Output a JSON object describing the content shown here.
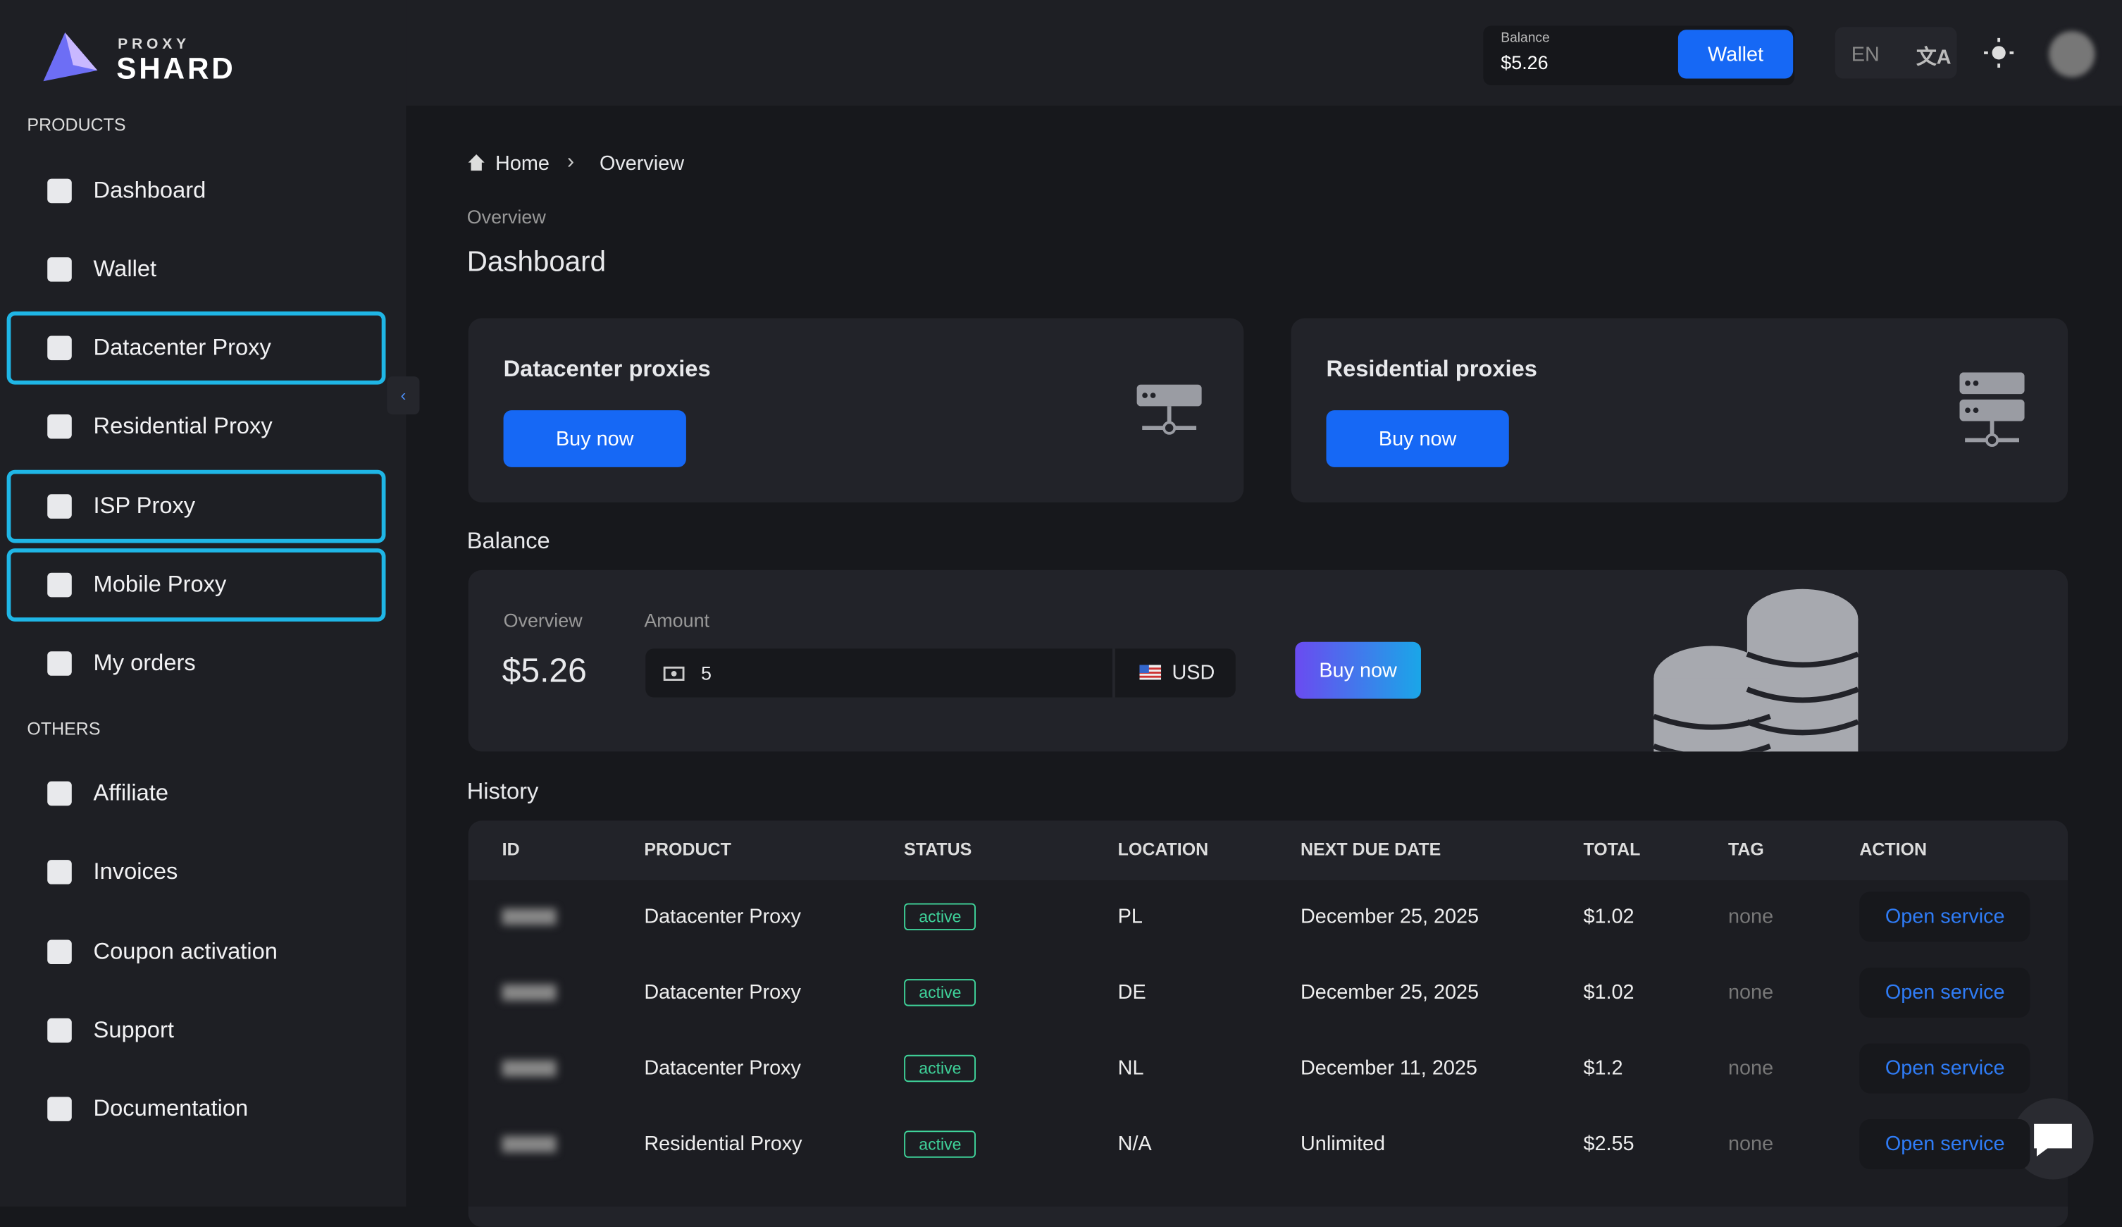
{
  "header": {
    "logo_top": "PROXY",
    "logo_bottom": "SHARD",
    "balance_label": "Balance",
    "balance_value": "$5.26",
    "wallet_button": "Wallet",
    "language": "EN"
  },
  "sidebar": {
    "sections": [
      {
        "title": "PRODUCTS",
        "items": [
          "Dashboard",
          "Wallet",
          "Datacenter Proxy",
          "Residential Proxy",
          "ISP Proxy",
          "Mobile Proxy",
          "My orders"
        ]
      },
      {
        "title": "OTHERS",
        "items": [
          "Affiliate",
          "Invoices",
          "Coupon activation",
          "Support",
          "Documentation"
        ]
      }
    ]
  },
  "breadcrumb": [
    "Home",
    "Overview"
  ],
  "page": {
    "subtitle": "Overview",
    "title": "Dashboard"
  },
  "cards": [
    {
      "title": "Datacenter proxies",
      "button": "Buy now"
    },
    {
      "title": "Residential proxies",
      "button": "Buy now"
    }
  ],
  "balance": {
    "heading": "Balance",
    "overview_label": "Overview",
    "overview_value": "$5.26",
    "amount_label": "Amount",
    "amount_value": "5",
    "currency": "USD",
    "button": "Buy now"
  },
  "history": {
    "heading": "History",
    "columns": [
      "ID",
      "PRODUCT",
      "STATUS",
      "LOCATION",
      "NEXT DUE DATE",
      "TOTAL",
      "TAG",
      "ACTION"
    ],
    "rows": [
      {
        "product": "Datacenter Proxy",
        "status": "active",
        "location": "PL",
        "due": "December 25, 2025",
        "total": "$1.02",
        "tag": "none",
        "action": "Open service"
      },
      {
        "product": "Datacenter Proxy",
        "status": "active",
        "location": "DE",
        "due": "December 25, 2025",
        "total": "$1.02",
        "tag": "none",
        "action": "Open service"
      },
      {
        "product": "Datacenter Proxy",
        "status": "active",
        "location": "NL",
        "due": "December 11, 2025",
        "total": "$1.2",
        "tag": "none",
        "action": "Open service"
      },
      {
        "product": "Residential Proxy",
        "status": "active",
        "location": "N/A",
        "due": "Unlimited",
        "total": "$2.55",
        "tag": "none",
        "action": "Open service"
      }
    ]
  }
}
